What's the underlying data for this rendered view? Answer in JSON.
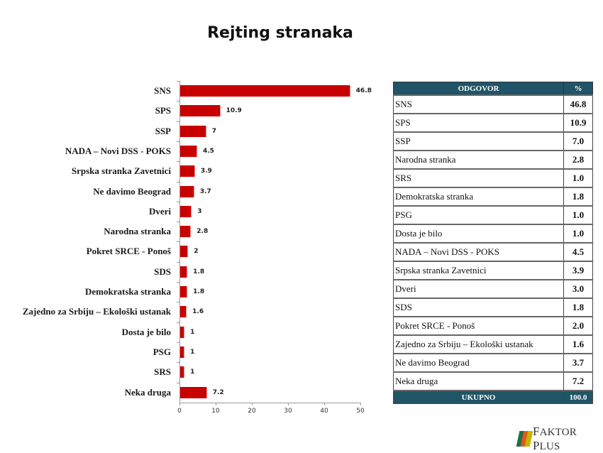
{
  "title": "Rejting stranaka",
  "chart_data": {
    "type": "bar",
    "orientation": "horizontal",
    "title": "Rejting stranaka",
    "categories": [
      "SNS",
      "SPS",
      "SSP",
      "NADA – Novi DSS - POKS",
      "Srpska stranka Zavetnici",
      "Ne davimo Beograd",
      "Dveri",
      "Narodna stranka",
      "Pokret SRCE - Ponoš",
      "SDS",
      "Demokratska stranka",
      "Zajedno za Srbiju – Ekološki ustanak",
      "Dosta je bilo",
      "PSG",
      "SRS",
      "Neka druga"
    ],
    "values": [
      46.8,
      10.9,
      7,
      4.5,
      3.9,
      3.7,
      3,
      2.8,
      2,
      1.8,
      1.8,
      1.6,
      1,
      1,
      1,
      7.2
    ],
    "value_labels": [
      "46.8",
      "10.9",
      "7",
      "4.5",
      "3.9",
      "3.7",
      "3",
      "2.8",
      "2",
      "1.8",
      "1.8",
      "1.6",
      "1",
      "1",
      "1",
      "7.2"
    ],
    "xlabel": "",
    "ylabel": "",
    "xlim": [
      0,
      50
    ],
    "x_ticks": [
      "0",
      "10",
      "20",
      "30",
      "40",
      "50"
    ],
    "grid": false,
    "legend": "none",
    "bar_color": "#c80000"
  },
  "table": {
    "headers": [
      "ODGOVOR",
      "%"
    ],
    "rows": [
      {
        "label": "SNS",
        "value": "46.8"
      },
      {
        "label": "SPS",
        "value": "10.9"
      },
      {
        "label": "SSP",
        "value": "7.0"
      },
      {
        "label": "Narodna stranka",
        "value": "2.8"
      },
      {
        "label": "SRS",
        "value": "1.0"
      },
      {
        "label": "Demokratska stranka",
        "value": "1.8"
      },
      {
        "label": "PSG",
        "value": "1.0"
      },
      {
        "label": "Dosta je bilo",
        "value": "1.0"
      },
      {
        "label": "NADA – Novi DSS - POKS",
        "value": "4.5"
      },
      {
        "label": "Srpska stranka Zavetnici",
        "value": "3.9"
      },
      {
        "label": "Dveri",
        "value": "3.0"
      },
      {
        "label": "SDS",
        "value": "1.8"
      },
      {
        "label": "Pokret SRCE - Ponoš",
        "value": "2.0"
      },
      {
        "label": "Zajedno za Srbiju – Ekološki ustanak",
        "value": "1.6"
      },
      {
        "label": "Ne davimo Beograd",
        "value": "3.7"
      },
      {
        "label": "Neka druga",
        "value": "7.2"
      }
    ],
    "total": {
      "label": "UKUPNO",
      "value": "100.0"
    },
    "header_color": "#1f5566"
  },
  "logo": {
    "text_f": "F",
    "text_rest": "AKTOR ",
    "text_p": "P",
    "text_rest2": "LUS",
    "colors": [
      "#1f6e4a",
      "#e05a1a",
      "#c8b400"
    ]
  }
}
